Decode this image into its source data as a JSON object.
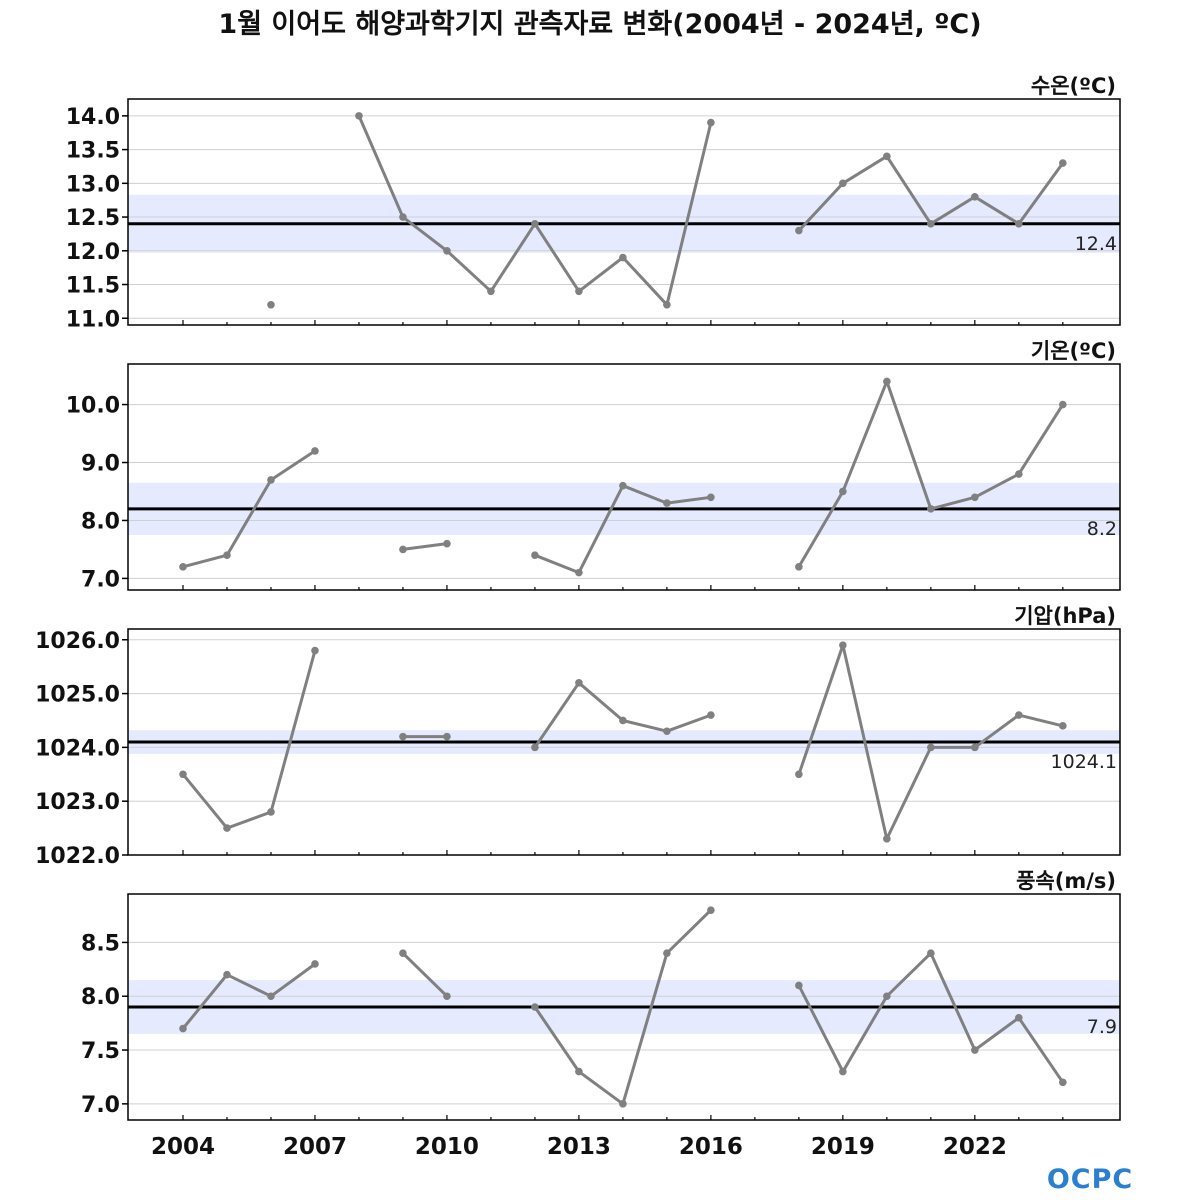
{
  "title": "1월 이어도 해양과학기지 관측자료 변화(2004년 - 2024년, ºC)",
  "logo_text": "OCPC",
  "colors": {
    "line": "#808080",
    "mean": "#000000",
    "band": "#e6eaff",
    "grid": "#d0d0d0",
    "logo": "#2a7fd0"
  },
  "chart_data": [
    {
      "type": "line",
      "title": "수온(ºC)",
      "x": [
        2004,
        2005,
        2006,
        2007,
        2008,
        2009,
        2010,
        2011,
        2012,
        2013,
        2014,
        2015,
        2016,
        2017,
        2018,
        2019,
        2020,
        2021,
        2022,
        2023,
        2024
      ],
      "values": [
        null,
        null,
        11.2,
        null,
        14.0,
        12.5,
        12.0,
        11.4,
        12.4,
        11.4,
        11.9,
        11.2,
        13.9,
        null,
        12.3,
        13.0,
        13.4,
        12.4,
        12.8,
        12.4,
        13.3
      ],
      "mean": 12.4,
      "mean_label": "12.4",
      "band": [
        11.97,
        12.83
      ],
      "ylim": [
        10.9,
        14.25
      ],
      "yticks": [
        11.0,
        11.5,
        12.0,
        12.5,
        13.0,
        13.5,
        14.0
      ],
      "ytick_labels": [
        "11.0",
        "11.5",
        "12.0",
        "12.5",
        "13.0",
        "13.5",
        "14.0"
      ],
      "grid": true
    },
    {
      "type": "line",
      "title": "기온(ºC)",
      "x": [
        2004,
        2005,
        2006,
        2007,
        2008,
        2009,
        2010,
        2011,
        2012,
        2013,
        2014,
        2015,
        2016,
        2017,
        2018,
        2019,
        2020,
        2021,
        2022,
        2023,
        2024
      ],
      "values": [
        7.2,
        7.4,
        8.7,
        9.2,
        null,
        7.5,
        7.6,
        null,
        7.4,
        7.1,
        8.6,
        8.3,
        8.4,
        null,
        7.2,
        8.5,
        10.4,
        8.2,
        8.4,
        8.8,
        10.0
      ],
      "mean": 8.2,
      "mean_label": "8.2",
      "band": [
        7.75,
        8.65
      ],
      "ylim": [
        6.8,
        10.7
      ],
      "yticks": [
        7.0,
        8.0,
        9.0,
        10.0
      ],
      "ytick_labels": [
        "7.0",
        "8.0",
        "9.0",
        "10.0"
      ],
      "grid": true
    },
    {
      "type": "line",
      "title": "기압(hPa)",
      "x": [
        2004,
        2005,
        2006,
        2007,
        2008,
        2009,
        2010,
        2011,
        2012,
        2013,
        2014,
        2015,
        2016,
        2017,
        2018,
        2019,
        2020,
        2021,
        2022,
        2023,
        2024
      ],
      "values": [
        1023.5,
        1022.5,
        1022.8,
        1025.8,
        null,
        1024.2,
        1024.2,
        null,
        1024.0,
        1025.2,
        1024.5,
        1024.3,
        1024.6,
        null,
        1023.5,
        1025.9,
        1022.3,
        1024.0,
        1024.0,
        1024.6,
        1024.4
      ],
      "mean": 1024.1,
      "mean_label": "1024.1",
      "band": [
        1023.88,
        1024.32
      ],
      "ylim": [
        1022.0,
        1026.2
      ],
      "yticks": [
        1022.0,
        1023.0,
        1024.0,
        1025.0,
        1026.0
      ],
      "ytick_labels": [
        "1022.0",
        "1023.0",
        "1024.0",
        "1025.0",
        "1026.0"
      ],
      "grid": true
    },
    {
      "type": "line",
      "title": "풍속(m/s)",
      "x": [
        2004,
        2005,
        2006,
        2007,
        2008,
        2009,
        2010,
        2011,
        2012,
        2013,
        2014,
        2015,
        2016,
        2017,
        2018,
        2019,
        2020,
        2021,
        2022,
        2023,
        2024
      ],
      "values": [
        7.7,
        8.2,
        8.0,
        8.3,
        null,
        8.4,
        8.0,
        null,
        7.9,
        7.3,
        7.0,
        8.4,
        8.8,
        null,
        8.1,
        7.3,
        8.0,
        8.4,
        7.5,
        7.8,
        7.2
      ],
      "mean": 7.9,
      "mean_label": "7.9",
      "band": [
        7.65,
        8.15
      ],
      "ylim": [
        6.85,
        8.95
      ],
      "yticks": [
        7.0,
        7.5,
        8.0,
        8.5
      ],
      "ytick_labels": [
        "7.0",
        "7.5",
        "8.0",
        "8.5"
      ],
      "grid": true
    }
  ],
  "xaxis": {
    "xlim": [
      2002.75,
      2025.3
    ],
    "ticks": [
      2004,
      2005,
      2006,
      2007,
      2008,
      2009,
      2010,
      2011,
      2012,
      2013,
      2014,
      2015,
      2016,
      2017,
      2018,
      2019,
      2020,
      2021,
      2022,
      2023,
      2024
    ],
    "major_ticks": [
      2004,
      2007,
      2010,
      2013,
      2016,
      2019,
      2022
    ],
    "tick_labels": [
      "2004",
      "2007",
      "2010",
      "2013",
      "2016",
      "2019",
      "2022"
    ]
  }
}
